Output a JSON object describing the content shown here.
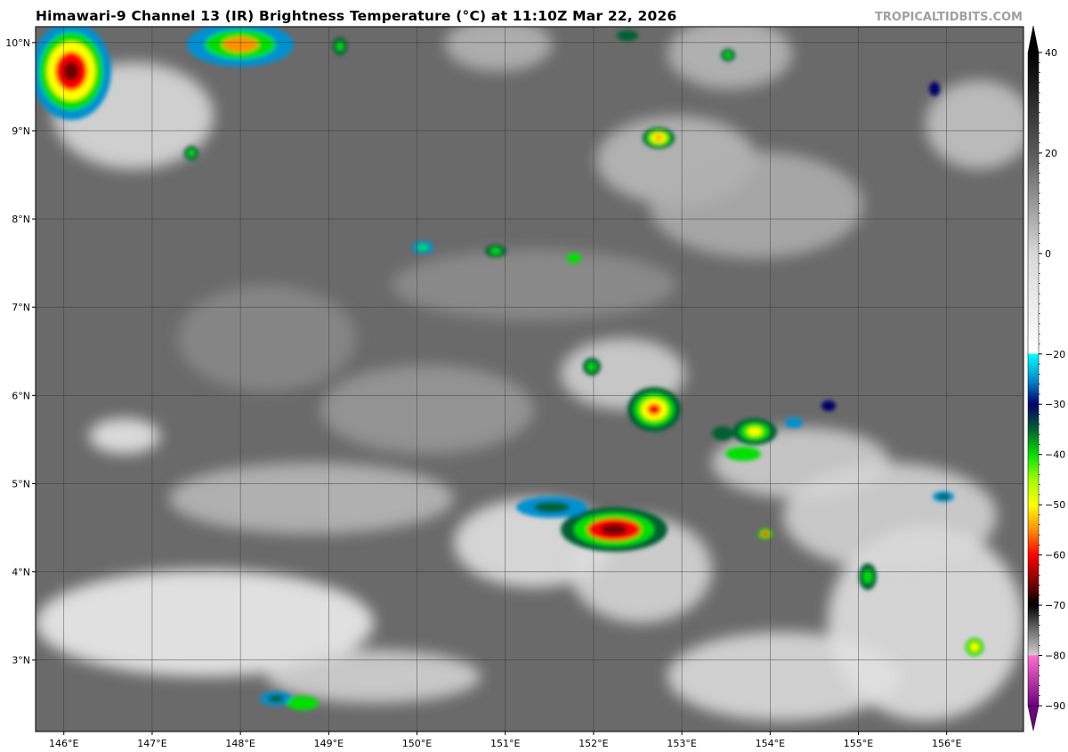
{
  "header": {
    "title": "Himawari-9 Channel 13 (IR) Brightness Temperature (°C) at 11:10Z Mar 22, 2026",
    "credit": "TROPICALTIDBITS.COM"
  },
  "map": {
    "longitude_labels": [
      "146°E",
      "147°E",
      "148°E",
      "149°E",
      "150°E",
      "151°E",
      "152°E",
      "153°E",
      "154°E",
      "155°E",
      "156°E"
    ],
    "longitudes": [
      146,
      147,
      148,
      149,
      150,
      151,
      152,
      153,
      154,
      155,
      156
    ],
    "latitude_labels": [
      "3°N",
      "4°N",
      "5°N",
      "6°N",
      "7°N",
      "8°N",
      "9°N",
      "10°N"
    ],
    "latitudes": [
      3,
      4,
      5,
      6,
      7,
      8,
      9,
      10
    ],
    "extent": {
      "lon": [
        145.68,
        156.87
      ],
      "lat": [
        2.19,
        10.18
      ]
    },
    "background_color": "#6a6a6a"
  },
  "colorbar": {
    "unit": "°C",
    "range": [
      -90,
      40
    ],
    "tick_values": [
      40,
      20,
      0,
      -20,
      -30,
      -40,
      -50,
      -60,
      -70,
      -80,
      -90
    ],
    "tick_labels": [
      "40",
      "20",
      "0",
      "−20",
      "−30",
      "−40",
      "−50",
      "−60",
      "−70",
      "−80",
      "−90"
    ],
    "stops": [
      {
        "t": 40,
        "c": "#000000"
      },
      {
        "t": 20,
        "c": "#5a5a5a"
      },
      {
        "t": 0,
        "c": "#d8d8d8"
      },
      {
        "t": -19.9,
        "c": "#ffffff"
      },
      {
        "t": -20,
        "c": "#00ffff"
      },
      {
        "t": -25,
        "c": "#0090d0"
      },
      {
        "t": -30,
        "c": "#00006e"
      },
      {
        "t": -35,
        "c": "#006030"
      },
      {
        "t": -40,
        "c": "#00e000"
      },
      {
        "t": -45,
        "c": "#a0ff00"
      },
      {
        "t": -50,
        "c": "#ffff00"
      },
      {
        "t": -55,
        "c": "#ff9000"
      },
      {
        "t": -60,
        "c": "#ff0000"
      },
      {
        "t": -66,
        "c": "#700000"
      },
      {
        "t": -70,
        "c": "#000000"
      },
      {
        "t": -75,
        "c": "#707070"
      },
      {
        "t": -79.9,
        "c": "#d0d0d0"
      },
      {
        "t": -80,
        "c": "#ff70d0"
      },
      {
        "t": -90,
        "c": "#700080"
      }
    ]
  }
}
